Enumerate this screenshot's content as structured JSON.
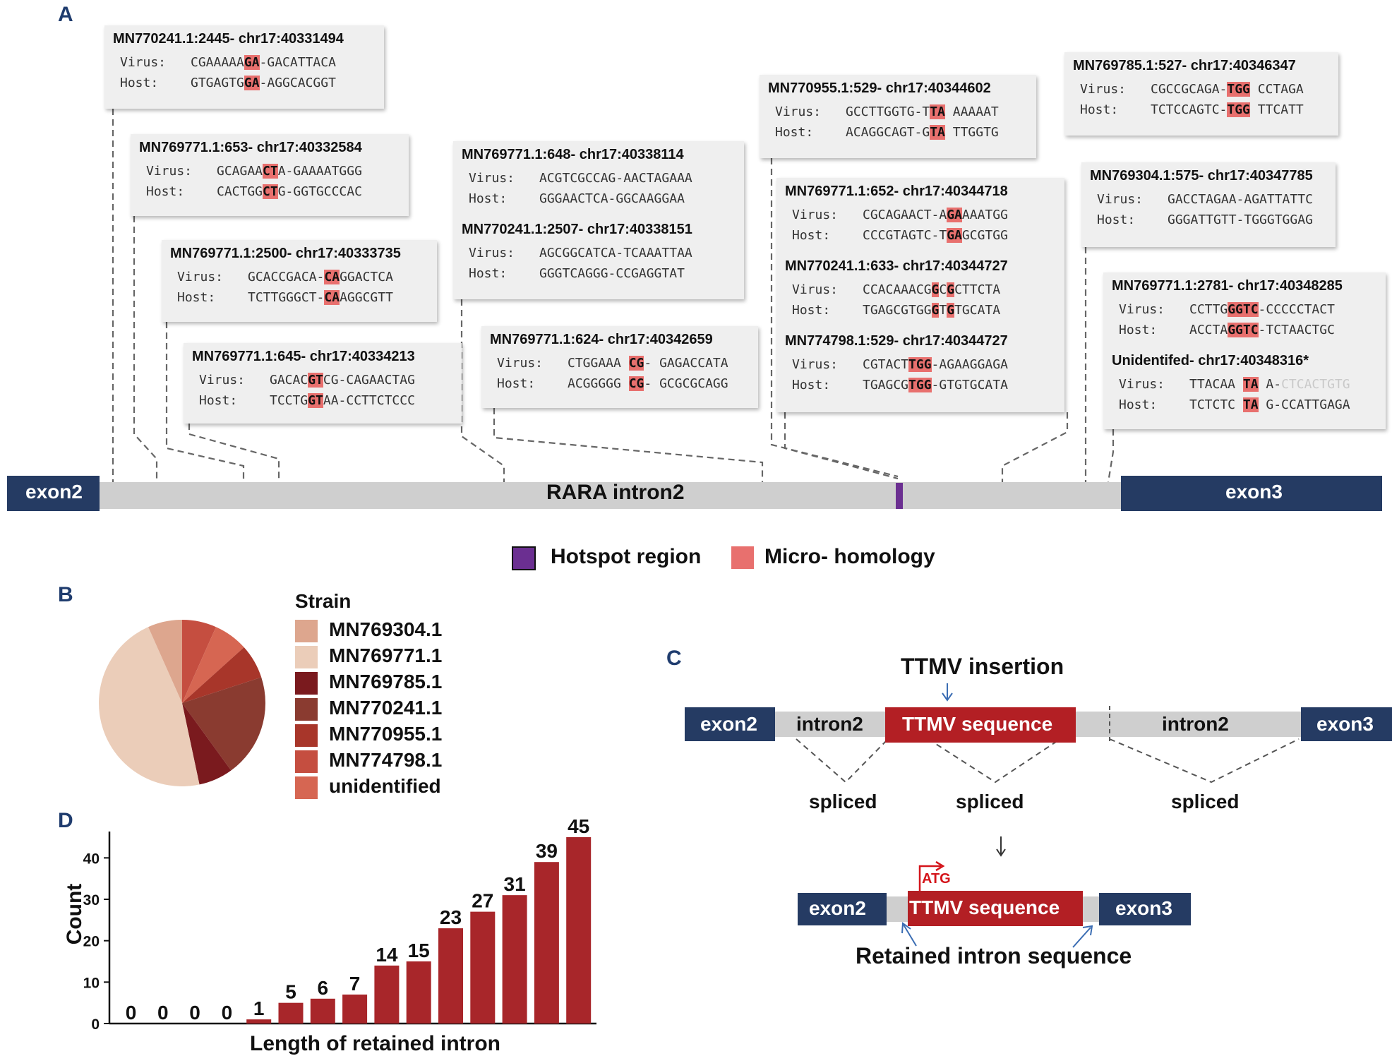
{
  "panels": {
    "a": "A",
    "b": "B",
    "c": "C",
    "d": "D"
  },
  "colors": {
    "exon": "#253b63",
    "intron": "#cfcfcf",
    "hotspot": "#6b2f91",
    "microhomology": "#e8706e",
    "ttmv": "#b31f24",
    "bar": "#a8262a",
    "panel_letter": "#1f3c6e"
  },
  "panel_a": {
    "exon_left": "exon2",
    "exon_right": "exon3",
    "intron_label": "RARA intron2",
    "row_labels": {
      "virus": "Virus:",
      "host": "Host:"
    },
    "boxes": [
      {
        "entries": [
          {
            "header": "MN770241.1:2445- chr17:40331494",
            "virus": [
              [
                "CGAAAAA",
                ""
              ],
              [
                "GA",
                "mh"
              ],
              [
                "-GACATTACA",
                ""
              ]
            ],
            "host": [
              [
                "GTGAGTG",
                ""
              ],
              [
                "GA",
                "mh"
              ],
              [
                "-AGGCACGGT",
                ""
              ]
            ]
          }
        ]
      },
      {
        "entries": [
          {
            "header": "MN769771.1:653- chr17:40332584",
            "virus": [
              [
                "GCAGAA",
                ""
              ],
              [
                "CT",
                "mh"
              ],
              [
                "A-GAAAATGGG",
                ""
              ]
            ],
            "host": [
              [
                "CACTGG",
                ""
              ],
              [
                "CT",
                "mh"
              ],
              [
                "G-GGTGCCCAC",
                ""
              ]
            ]
          }
        ]
      },
      {
        "entries": [
          {
            "header": "MN769771.1:2500- chr17:40333735",
            "virus": [
              [
                "GCACCGACA-",
                ""
              ],
              [
                "CA",
                "mh"
              ],
              [
                "GGACTCA",
                ""
              ]
            ],
            "host": [
              [
                "TCTTGGGCT-",
                ""
              ],
              [
                "CA",
                "mh"
              ],
              [
                "AGGCGTT",
                ""
              ]
            ]
          }
        ]
      },
      {
        "entries": [
          {
            "header": "MN769771.1:645- chr17:40334213",
            "virus": [
              [
                "GACAC",
                ""
              ],
              [
                "GT",
                "mh"
              ],
              [
                "CG-CAGAACTAG",
                ""
              ]
            ],
            "host": [
              [
                "TCCTG",
                ""
              ],
              [
                "GT",
                "mh"
              ],
              [
                "AA-CCTTCTCCC",
                ""
              ]
            ]
          }
        ]
      },
      {
        "entries": [
          {
            "header": "MN769771.1:648- chr17:40338114",
            "virus": [
              [
                "ACGTCGCCAG-AACTAGAAA",
                ""
              ]
            ],
            "host": [
              [
                "GGGAACTCA-GGCAAGGAA",
                ""
              ]
            ]
          },
          {
            "header": "MN770241.1:2507- chr17:40338151",
            "virus": [
              [
                "AGCGGCATCA-TCAAATTAA",
                ""
              ]
            ],
            "host": [
              [
                "GGGTCAGGG-CCGAGGTAT",
                ""
              ]
            ]
          }
        ]
      },
      {
        "entries": [
          {
            "header": "MN769771.1:624- chr17:40342659",
            "virus": [
              [
                "CTGGAAA ",
                ""
              ],
              [
                "CG",
                "mh"
              ],
              [
                "- GAGACCATA",
                ""
              ]
            ],
            "host": [
              [
                "ACGGGGG ",
                ""
              ],
              [
                "CG",
                "mh"
              ],
              [
                "- GCGCGCAGG",
                ""
              ]
            ]
          }
        ]
      },
      {
        "entries": [
          {
            "header": "MN770955.1:529- chr17:40344602",
            "virus": [
              [
                "GCCTTGGTG-T",
                ""
              ],
              [
                "TA",
                "mh"
              ],
              [
                " AAAAAT",
                ""
              ]
            ],
            "host": [
              [
                "ACAGGCAGT-G",
                ""
              ],
              [
                "TA",
                "mh"
              ],
              [
                " TTGGTG",
                ""
              ]
            ]
          }
        ]
      },
      {
        "entries": [
          {
            "header": "MN769771.1:652- chr17:40344718",
            "virus": [
              [
                "CGCAGAACT-A",
                ""
              ],
              [
                "GA",
                "mh"
              ],
              [
                "AAATGG",
                ""
              ]
            ],
            "host": [
              [
                "CCCGTAGTC-T",
                ""
              ],
              [
                "GA",
                "mh"
              ],
              [
                "GCGTGG",
                ""
              ]
            ]
          },
          {
            "header": "MN770241.1:633- chr17:40344727",
            "virus": [
              [
                "CCACAAACG",
                ""
              ],
              [
                "G",
                "mh"
              ],
              [
                "C",
                ""
              ],
              [
                "G",
                "mh"
              ],
              [
                "CTTCTA",
                ""
              ]
            ],
            "host": [
              [
                "TGAGCGTGG",
                ""
              ],
              [
                "G",
                "mh"
              ],
              [
                "T",
                ""
              ],
              [
                "G",
                "mh"
              ],
              [
                "TGCATA",
                ""
              ]
            ]
          },
          {
            "header": "MN774798.1:529- chr17:40344727",
            "virus": [
              [
                "CGTACT",
                ""
              ],
              [
                "TGG",
                "mh"
              ],
              [
                "-AGAAGGAGA",
                ""
              ]
            ],
            "host": [
              [
                "TGAGCG",
                ""
              ],
              [
                "TGG",
                "mh"
              ],
              [
                "-GTGTGCATA",
                ""
              ]
            ]
          }
        ]
      },
      {
        "entries": [
          {
            "header": "MN769785.1:527- chr17:40346347",
            "virus": [
              [
                "CGCCGCAGA-",
                ""
              ],
              [
                "TGG",
                "mh"
              ],
              [
                " CCTAGA",
                ""
              ]
            ],
            "host": [
              [
                "TCTCCAGTC-",
                ""
              ],
              [
                "TGG",
                "mh"
              ],
              [
                " TTCATT",
                ""
              ]
            ]
          }
        ]
      },
      {
        "entries": [
          {
            "header": "MN769304.1:575- chr17:40347785",
            "virus": [
              [
                "GACCTAGAA-AGATTATTC",
                ""
              ]
            ],
            "host": [
              [
                "GGGATTGTT-TGGGTGGAG",
                ""
              ]
            ]
          }
        ]
      },
      {
        "entries": [
          {
            "header": "MN769771.1:2781- chr17:40348285",
            "virus": [
              [
                "CCTTG",
                ""
              ],
              [
                "GGTC",
                "mh"
              ],
              [
                "-CCCCCTACT",
                ""
              ]
            ],
            "host": [
              [
                "ACCTA",
                ""
              ],
              [
                "GGTC",
                "mh"
              ],
              [
                "-TCTAACTGC",
                ""
              ]
            ]
          },
          {
            "header": "Unidentifed- chr17:40348316*",
            "virus": [
              [
                "TTACAA ",
                ""
              ],
              [
                "TA",
                "mh"
              ],
              [
                " A-",
                ""
              ],
              [
                "CTCACTGTG",
                "faint"
              ]
            ],
            "host": [
              [
                "TCTCTC ",
                ""
              ],
              [
                "TA",
                "mh"
              ],
              [
                " G-CCATTGAGA",
                ""
              ]
            ]
          }
        ]
      }
    ],
    "legend": {
      "hotspot": "Hotspot region",
      "microhomology": "Micro- homology"
    }
  },
  "panel_b": {
    "legend_title": "Strain",
    "strains": [
      {
        "name": "MN769304.1",
        "value": 1,
        "color": "#dda68e"
      },
      {
        "name": "MN769771.1",
        "value": 7,
        "color": "#ebcdb9"
      },
      {
        "name": "MN769785.1",
        "value": 1,
        "color": "#7a1a1e"
      },
      {
        "name": "MN770241.1",
        "value": 3,
        "color": "#8a3b30"
      },
      {
        "name": "MN770955.1",
        "value": 1,
        "color": "#a8362a"
      },
      {
        "name": "MN774798.1",
        "value": 1,
        "color": "#c54e40"
      },
      {
        "name": "unidentified",
        "value": 1,
        "color": "#d66652"
      }
    ]
  },
  "panel_c": {
    "insertion_label": "TTMV insertion",
    "top": {
      "exon_left": "exon2",
      "intron_left": "intron2",
      "ttmv": "TTMV sequence",
      "intron_right": "intron2",
      "exon_right": "exon3"
    },
    "spliced_labels": [
      "spliced",
      "spliced",
      "spliced"
    ],
    "bottom": {
      "exon_left": "exon2",
      "ttmv": "TTMV sequence",
      "exon_right": "exon3",
      "atg": "ATG"
    },
    "retained_label": "Retained intron sequence"
  },
  "chart_data": {
    "type": "bar",
    "title": "",
    "xlabel": "Length of retained intron",
    "ylabel": "Count",
    "ylim": [
      0,
      45
    ],
    "yticks": [
      0,
      10,
      20,
      30,
      40
    ],
    "values": [
      0,
      0,
      0,
      0,
      1,
      5,
      6,
      7,
      14,
      15,
      23,
      27,
      31,
      39,
      45
    ],
    "data_labels": [
      "0",
      "0",
      "0",
      "0",
      "1",
      "5",
      "6",
      "7",
      "14",
      "15",
      "23",
      "27",
      "31",
      "39",
      "45"
    ]
  }
}
